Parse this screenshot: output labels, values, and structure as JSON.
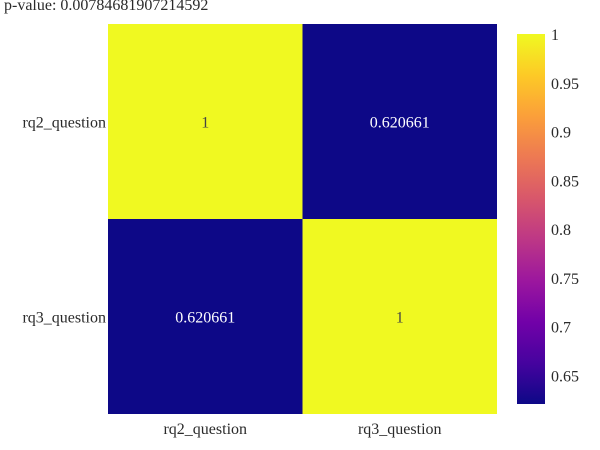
{
  "title": "p-value: 0.00784681907214592",
  "colors": {
    "low": "#0d0887",
    "high": "#f0f921"
  },
  "chart_data": {
    "type": "heatmap",
    "title": "p-value: 0.00784681907214592",
    "x_categories": [
      "rq2_question",
      "rq3_question"
    ],
    "y_categories": [
      "rq2_question",
      "rq3_question"
    ],
    "values": [
      [
        1,
        0.620661
      ],
      [
        0.620661,
        1
      ]
    ],
    "cell_labels": [
      [
        "1",
        "0.620661"
      ],
      [
        "0.620661",
        "1"
      ]
    ],
    "colorscale": "plasma",
    "zmin": 0.620661,
    "zmax": 1,
    "colorbar_ticks": [
      {
        "value": 1,
        "label": "1"
      },
      {
        "value": 0.95,
        "label": "0.95"
      },
      {
        "value": 0.9,
        "label": "0.9"
      },
      {
        "value": 0.85,
        "label": "0.85"
      },
      {
        "value": 0.8,
        "label": "0.8"
      },
      {
        "value": 0.75,
        "label": "0.75"
      },
      {
        "value": 0.7,
        "label": "0.7"
      },
      {
        "value": 0.65,
        "label": "0.65"
      }
    ],
    "grid": false,
    "legend": "colorbar-right"
  }
}
